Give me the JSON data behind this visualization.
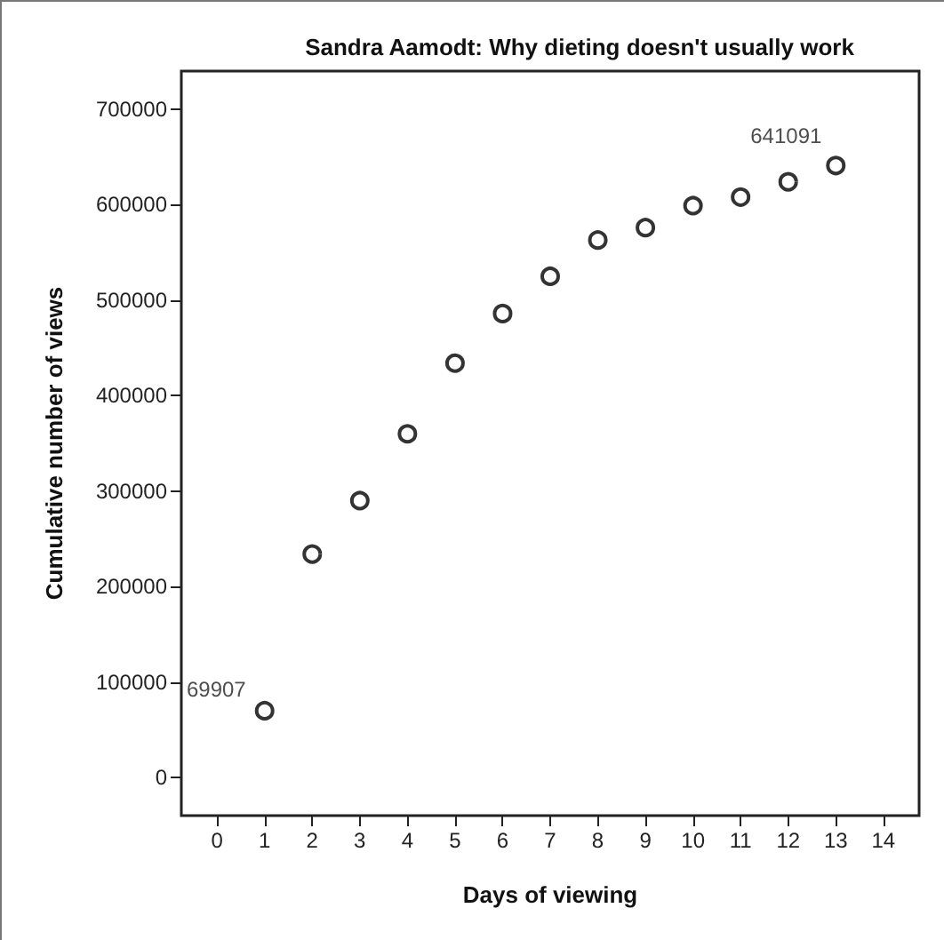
{
  "chart_data": {
    "type": "scatter",
    "title": "Sandra Aamodt: Why dieting doesn't usually work",
    "xlabel": "Days of viewing",
    "ylabel": "Cumulative number of views",
    "x": [
      1,
      2,
      3,
      4,
      5,
      6,
      7,
      8,
      9,
      10,
      11,
      12,
      13
    ],
    "values": [
      69907,
      234000,
      290000,
      360000,
      434000,
      486000,
      525000,
      563000,
      576000,
      599000,
      608000,
      624000,
      641091
    ],
    "value_labels": [
      "69907",
      null,
      null,
      null,
      null,
      null,
      null,
      null,
      null,
      null,
      null,
      null,
      "641091"
    ],
    "color": "#000000",
    "marker": "circle",
    "grid": false,
    "xlim": [
      -0.75,
      14.75
    ],
    "xticks": [
      0,
      1,
      2,
      3,
      4,
      5,
      6,
      7,
      8,
      9,
      10,
      11,
      12,
      13,
      14
    ],
    "ylim": [
      -40000,
      740000
    ],
    "yticks": [
      0,
      100000,
      200000,
      300000,
      400000,
      500000,
      600000,
      700000
    ]
  }
}
